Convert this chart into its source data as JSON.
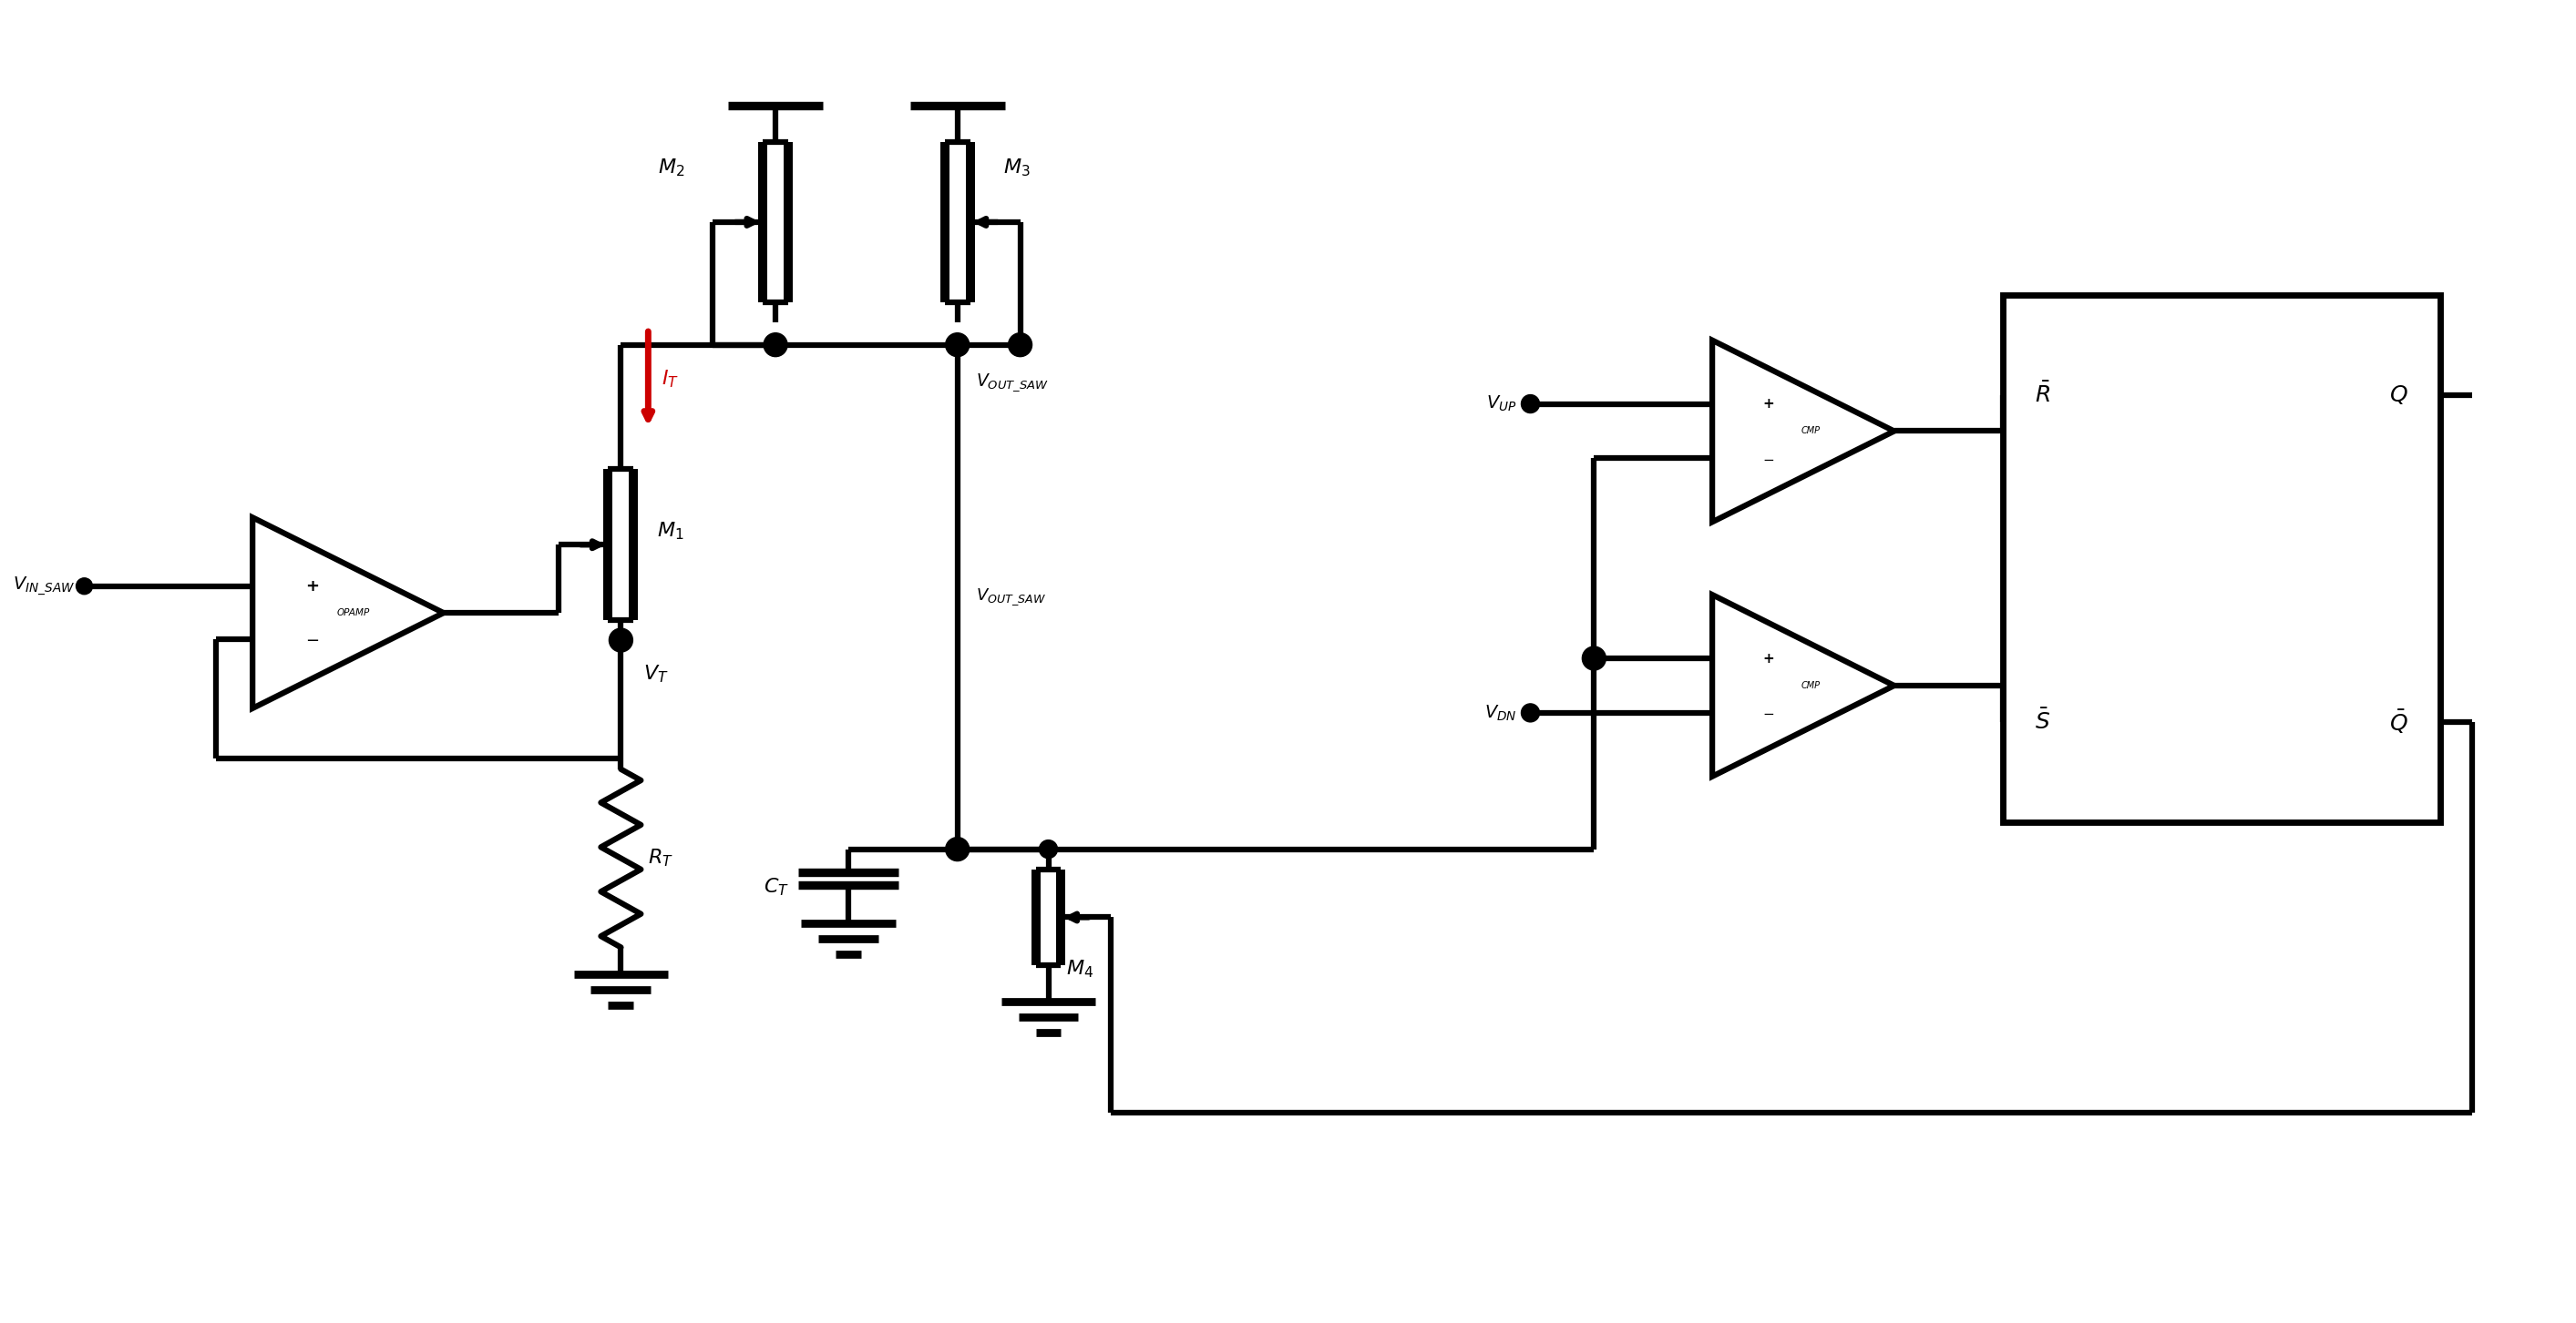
{
  "bg": "#ffffff",
  "lc": "#000000",
  "rc": "#cc0000",
  "lw": 4.5,
  "fw": 28.27,
  "fh": 14.53,
  "dpi": 100,
  "xlim": [
    0,
    28.27
  ],
  "ylim": [
    0,
    14.53
  ]
}
